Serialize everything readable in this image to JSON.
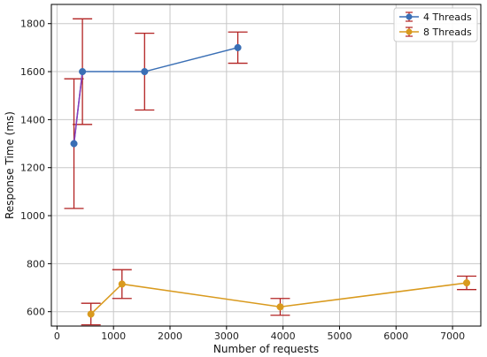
{
  "chart_data": {
    "type": "line",
    "title": "",
    "xlabel": "Number of requests",
    "ylabel": "Response Time (ms)",
    "xlim": [
      -100,
      7500
    ],
    "ylim": [
      540,
      1880
    ],
    "xticks": [
      0,
      1000,
      2000,
      3000,
      4000,
      5000,
      6000,
      7000
    ],
    "yticks": [
      600,
      800,
      1000,
      1200,
      1400,
      1600,
      1800
    ],
    "grid": true,
    "legend_position": "top-right",
    "error_bar_color": "#b22222",
    "series": [
      {
        "name": "4 Threads",
        "color": "#3a6fb5",
        "x": [
          300,
          450,
          1550,
          3200
        ],
        "y": [
          1300,
          1600,
          1600,
          1700
        ],
        "error": [
          270,
          220,
          160,
          65
        ],
        "extra_segments": [
          {
            "x": [
              300,
              450
            ],
            "y": [
              1300,
              1600
            ],
            "color": "#8a3fbf"
          }
        ]
      },
      {
        "name": "8 Threads",
        "color": "#d99a1e",
        "x": [
          600,
          1150,
          3950,
          7250
        ],
        "y": [
          590,
          715,
          620,
          720
        ],
        "error": [
          45,
          60,
          35,
          28
        ]
      }
    ]
  }
}
